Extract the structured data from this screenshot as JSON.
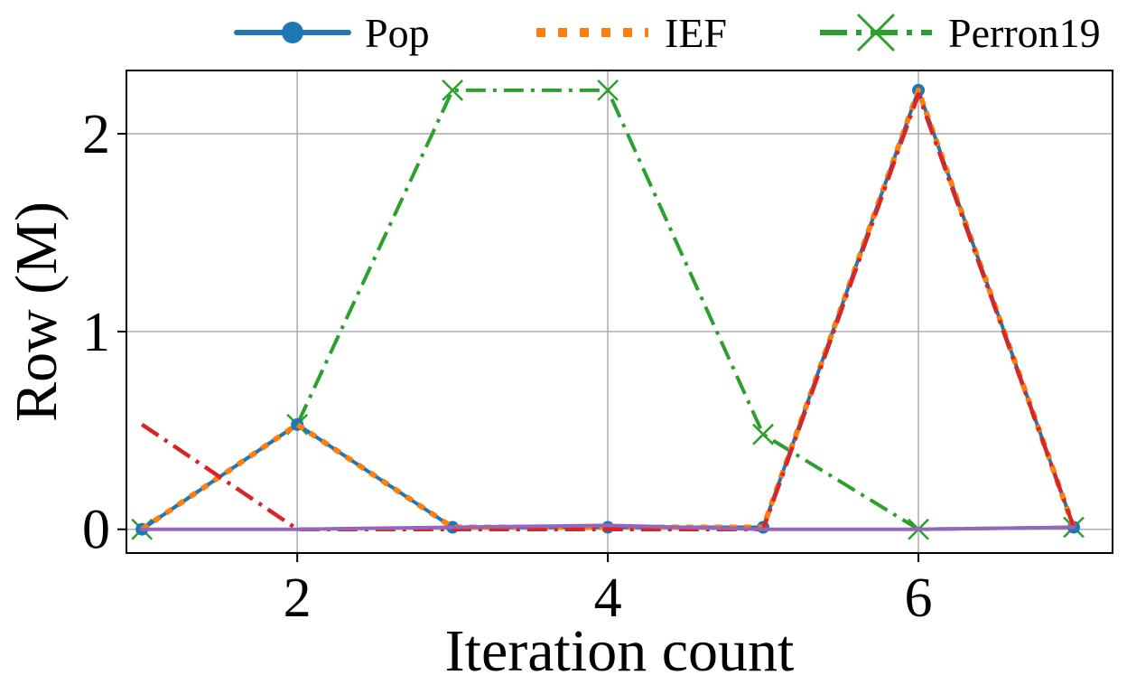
{
  "chart_data": {
    "type": "line",
    "title": "",
    "xlabel": "Iteration count",
    "ylabel": "Row (M)",
    "xlim": [
      0.9,
      7.25
    ],
    "ylim": [
      -0.12,
      2.32
    ],
    "xticks": [
      2,
      4,
      6
    ],
    "yticks": [
      0,
      1,
      2
    ],
    "grid": true,
    "legend_position": "top",
    "series": [
      {
        "name": "Pop",
        "color": "#1f77b4",
        "style": "solid-circle",
        "x": [
          1,
          2,
          3,
          4,
          5,
          6,
          7
        ],
        "y": [
          0.0,
          0.53,
          0.01,
          0.01,
          0.01,
          2.22,
          0.01
        ]
      },
      {
        "name": "IEF",
        "color": "#ff7f0e",
        "style": "dotted",
        "x": [
          1,
          2,
          3,
          4,
          5,
          6,
          7
        ],
        "y": [
          0.0,
          0.53,
          0.01,
          0.01,
          0.01,
          2.22,
          0.01
        ]
      },
      {
        "name": "Perron19",
        "color": "#2ca02c",
        "style": "dashdot-x",
        "x": [
          1,
          2,
          3,
          4,
          5,
          6,
          7
        ],
        "y": [
          0.0,
          0.53,
          2.22,
          2.22,
          0.48,
          0.0,
          0.01
        ]
      },
      {
        "name": "",
        "color": "#d62728",
        "style": "dashdot",
        "x": [
          1,
          2,
          3,
          4,
          5,
          6,
          7
        ],
        "y": [
          0.53,
          0.0,
          0.0,
          0.0,
          0.0,
          2.2,
          0.01
        ]
      },
      {
        "name": "",
        "color": "#9467bd",
        "style": "solid",
        "x": [
          1,
          2,
          3,
          4,
          5,
          6,
          7
        ],
        "y": [
          0.0,
          0.0,
          0.01,
          0.02,
          0.0,
          0.0,
          0.01
        ]
      }
    ]
  }
}
